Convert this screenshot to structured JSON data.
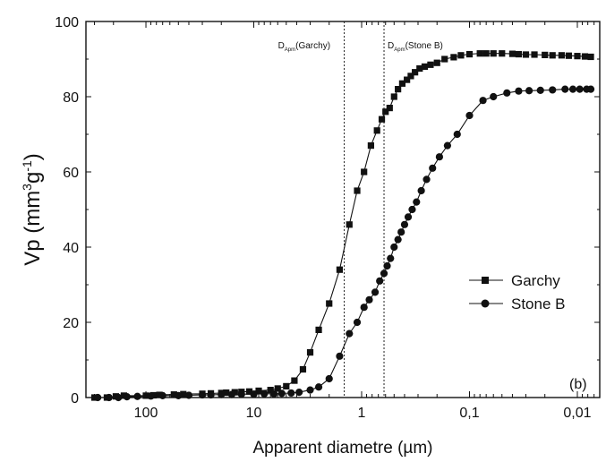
{
  "chart_data": {
    "type": "scatter",
    "xlabel": "Apparent diametre (µm)",
    "ylabel_parts": {
      "base": "Vp (mm",
      "exp1": "3",
      "mid": "g",
      "exp2": "-1",
      "end": ")"
    },
    "x_scale": "log",
    "x_reversed": true,
    "xlim": [
      360,
      0.0062
    ],
    "ylim": [
      0,
      100
    ],
    "x_ticks": [
      {
        "value": 100,
        "label": "100"
      },
      {
        "value": 10,
        "label": "10"
      },
      {
        "value": 1,
        "label": "1"
      },
      {
        "value": 0.1,
        "label": "0,1"
      },
      {
        "value": 0.01,
        "label": "0,01"
      }
    ],
    "y_ticks": [
      {
        "value": 0,
        "label": "0"
      },
      {
        "value": 20,
        "label": "20"
      },
      {
        "value": 40,
        "label": "40"
      },
      {
        "value": 60,
        "label": "60"
      },
      {
        "value": 80,
        "label": "80"
      },
      {
        "value": 100,
        "label": "100"
      }
    ],
    "panel_label": "(b)",
    "legend_position": "center-right",
    "series": [
      {
        "name": "Garchy",
        "marker": "square",
        "x": [
          300,
          230,
          190,
          160,
          100,
          85,
          75,
          55,
          45,
          30,
          25,
          20,
          18,
          15,
          13,
          11,
          9,
          7,
          6,
          5,
          4.2,
          3.5,
          3.0,
          2.5,
          2.0,
          1.6,
          1.3,
          1.1,
          0.95,
          0.82,
          0.72,
          0.65,
          0.6,
          0.55,
          0.5,
          0.46,
          0.42,
          0.38,
          0.35,
          0.32,
          0.29,
          0.26,
          0.23,
          0.2,
          0.17,
          0.14,
          0.12,
          0.1,
          0.08,
          0.07,
          0.06,
          0.05,
          0.04,
          0.035,
          0.03,
          0.025,
          0.02,
          0.017,
          0.014,
          0.012,
          0.01,
          0.0085,
          0.0075
        ],
        "y": [
          0,
          0,
          0.3,
          0.5,
          0.5,
          0.6,
          0.7,
          0.8,
          0.9,
          1.0,
          1.1,
          1.2,
          1.3,
          1.4,
          1.5,
          1.6,
          1.8,
          2.0,
          2.4,
          3.0,
          4.5,
          7.5,
          12,
          18,
          25,
          34,
          46,
          55,
          60,
          67,
          71,
          74,
          76,
          77,
          80,
          82,
          83.5,
          84.5,
          85.5,
          86.5,
          87.5,
          88,
          88.5,
          89,
          90,
          90.5,
          91,
          91.3,
          91.5,
          91.5,
          91.5,
          91.5,
          91.4,
          91.3,
          91.2,
          91.2,
          91.1,
          91.0,
          91.0,
          90.9,
          90.8,
          90.7,
          90.6
        ]
      },
      {
        "name": "Stone B",
        "marker": "circle",
        "x": [
          280,
          220,
          180,
          150,
          120,
          90,
          70,
          50,
          40,
          30,
          25,
          20,
          16,
          13,
          10,
          8,
          6.5,
          5.5,
          4.5,
          3.8,
          3.0,
          2.5,
          2.0,
          1.6,
          1.3,
          1.1,
          0.95,
          0.85,
          0.75,
          0.68,
          0.62,
          0.58,
          0.54,
          0.5,
          0.46,
          0.43,
          0.4,
          0.37,
          0.34,
          0.31,
          0.28,
          0.25,
          0.22,
          0.19,
          0.16,
          0.13,
          0.1,
          0.075,
          0.06,
          0.045,
          0.035,
          0.028,
          0.022,
          0.017,
          0.013,
          0.011,
          0.0095,
          0.0082,
          0.0075
        ],
        "y": [
          0,
          0,
          0,
          0.2,
          0.3,
          0.4,
          0.5,
          0.5,
          0.6,
          0.7,
          0.7,
          0.8,
          0.8,
          0.9,
          0.9,
          1.0,
          1.0,
          1.1,
          1.2,
          1.4,
          2.0,
          2.8,
          5,
          11,
          17,
          20,
          24,
          26,
          28,
          31,
          33,
          35,
          37,
          40,
          42,
          44,
          46,
          48,
          50,
          52,
          55,
          58,
          61,
          64,
          67,
          70,
          75,
          79,
          80,
          81,
          81.5,
          81.6,
          81.7,
          81.8,
          82,
          82,
          82,
          82,
          82
        ]
      }
    ],
    "reference_lines": [
      {
        "x": 1.45,
        "label_base": "D",
        "label_sub": "Apm",
        "label_rest": "(Garchy)"
      },
      {
        "x": 0.62,
        "label_base": "D",
        "label_sub": "Apm",
        "label_rest": "(Stone B)"
      }
    ]
  }
}
